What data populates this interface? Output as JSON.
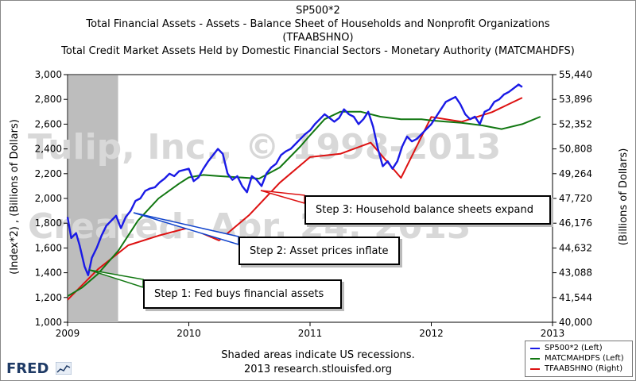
{
  "titles": {
    "line1": "SP500*2",
    "line2": "Total Financial Assets - Assets - Balance Sheet of Households and Nonprofit Organizations",
    "line3": "(TFAABSHNO)",
    "line4": "Total Credit Market Assets Held by Domestic Financial Sectors - Monetary Authority (MATCMAHDFS)"
  },
  "watermark": {
    "line1": "Tulip, Inc., © 1998-2013",
    "line2": "Created: Apr. 24, 2013"
  },
  "footer": {
    "line1": "Shaded areas indicate US recessions.",
    "line2": "2013 research.stlouisfed.org"
  },
  "logo": "FRED",
  "annotations": [
    {
      "text": "Step 1: Fed buys financial assets",
      "color": "#117711"
    },
    {
      "text": "Step 2: Asset prices inflate",
      "color": "#1144cc"
    },
    {
      "text": "Step 3: Household balance sheets expand",
      "color": "#dd1111"
    }
  ],
  "chart_data": {
    "type": "line",
    "xlabel_ticks": [
      "2009",
      "2010",
      "2011",
      "2012",
      "2013"
    ],
    "xlim": [
      2009.0,
      2013.0
    ],
    "ylabel_left": "(Index*2) , (Billions of Dollars)",
    "ylabel_right": "(Billions of Dollars)",
    "ylim_left": [
      1000,
      3000
    ],
    "yticks_left": [
      "1,000",
      "1,200",
      "1,400",
      "1,600",
      "1,800",
      "2,000",
      "2,200",
      "2,400",
      "2,600",
      "2,800",
      "3,000"
    ],
    "ylim_right": [
      40000,
      55440
    ],
    "yticks_right": [
      "40,000",
      "41,544",
      "43,088",
      "44,632",
      "46,176",
      "47,720",
      "49,264",
      "50,808",
      "52,352",
      "53,896",
      "55,440"
    ],
    "recession_shading": [
      2009.0,
      2009.41
    ],
    "grid": false,
    "legend_placement": "bottom-right",
    "series": [
      {
        "name": "SP500*2 (Left)",
        "axis": "left",
        "color": "#1a1ae6",
        "x": [
          2009.0,
          2009.03,
          2009.07,
          2009.1,
          2009.14,
          2009.17,
          2009.2,
          2009.24,
          2009.28,
          2009.32,
          2009.36,
          2009.4,
          2009.44,
          2009.48,
          2009.52,
          2009.56,
          2009.6,
          2009.64,
          2009.68,
          2009.72,
          2009.76,
          2009.8,
          2009.84,
          2009.88,
          2009.92,
          2009.96,
          2010.0,
          2010.04,
          2010.08,
          2010.12,
          2010.16,
          2010.2,
          2010.24,
          2010.28,
          2010.32,
          2010.36,
          2010.4,
          2010.44,
          2010.48,
          2010.52,
          2010.56,
          2010.6,
          2010.64,
          2010.68,
          2010.72,
          2010.76,
          2010.8,
          2010.84,
          2010.88,
          2010.92,
          2010.96,
          2011.0,
          2011.04,
          2011.08,
          2011.12,
          2011.16,
          2011.2,
          2011.24,
          2011.28,
          2011.32,
          2011.36,
          2011.4,
          2011.44,
          2011.48,
          2011.52,
          2011.56,
          2011.6,
          2011.64,
          2011.68,
          2011.72,
          2011.76,
          2011.8,
          2011.84,
          2011.88,
          2011.92,
          2011.96,
          2012.0,
          2012.04,
          2012.08,
          2012.12,
          2012.16,
          2012.2,
          2012.24,
          2012.28,
          2012.32,
          2012.36,
          2012.4,
          2012.44,
          2012.48,
          2012.52,
          2012.56,
          2012.6,
          2012.64,
          2012.68,
          2012.72,
          2012.75
        ],
        "y": [
          1850,
          1680,
          1720,
          1620,
          1450,
          1380,
          1520,
          1600,
          1700,
          1780,
          1820,
          1860,
          1760,
          1850,
          1900,
          1980,
          2000,
          2060,
          2080,
          2090,
          2130,
          2160,
          2200,
          2180,
          2220,
          2230,
          2240,
          2140,
          2170,
          2240,
          2300,
          2350,
          2400,
          2360,
          2200,
          2150,
          2180,
          2100,
          2050,
          2180,
          2150,
          2100,
          2200,
          2250,
          2280,
          2350,
          2380,
          2400,
          2440,
          2480,
          2520,
          2550,
          2600,
          2640,
          2680,
          2650,
          2620,
          2650,
          2720,
          2680,
          2660,
          2600,
          2640,
          2700,
          2580,
          2400,
          2260,
          2300,
          2240,
          2300,
          2420,
          2500,
          2460,
          2480,
          2520,
          2560,
          2600,
          2660,
          2720,
          2780,
          2800,
          2820,
          2760,
          2680,
          2640,
          2660,
          2600,
          2700,
          2720,
          2780,
          2800,
          2840,
          2860,
          2890,
          2920,
          2900
        ]
      },
      {
        "name": "MATCMAHDFS (Left)",
        "axis": "left",
        "color": "#117711",
        "x": [
          2009.0,
          2009.12,
          2009.25,
          2009.42,
          2009.58,
          2009.75,
          2009.92,
          2010.0,
          2010.12,
          2010.25,
          2010.42,
          2010.58,
          2010.75,
          2010.92,
          2011.0,
          2011.12,
          2011.25,
          2011.42,
          2011.58,
          2011.75,
          2011.92,
          2012.0,
          2012.12,
          2012.25,
          2012.42,
          2012.58,
          2012.75,
          2012.9
        ],
        "y": [
          1210,
          1280,
          1390,
          1580,
          1820,
          2000,
          2120,
          2170,
          2190,
          2180,
          2170,
          2160,
          2250,
          2420,
          2510,
          2640,
          2700,
          2700,
          2660,
          2640,
          2640,
          2630,
          2620,
          2610,
          2590,
          2560,
          2600,
          2660
        ]
      },
      {
        "name": "TFAABSHNO (Right)",
        "axis": "right",
        "color": "#dd1111",
        "x": [
          2009.0,
          2009.25,
          2009.5,
          2009.75,
          2010.0,
          2010.25,
          2010.5,
          2010.75,
          2011.0,
          2011.25,
          2011.5,
          2011.75,
          2012.0,
          2012.25,
          2012.5,
          2012.75
        ],
        "y": [
          41400,
          43300,
          44800,
          45400,
          45900,
          45100,
          46700,
          48700,
          50300,
          50500,
          51200,
          49000,
          52800,
          52500,
          53100,
          54000
        ]
      }
    ]
  }
}
